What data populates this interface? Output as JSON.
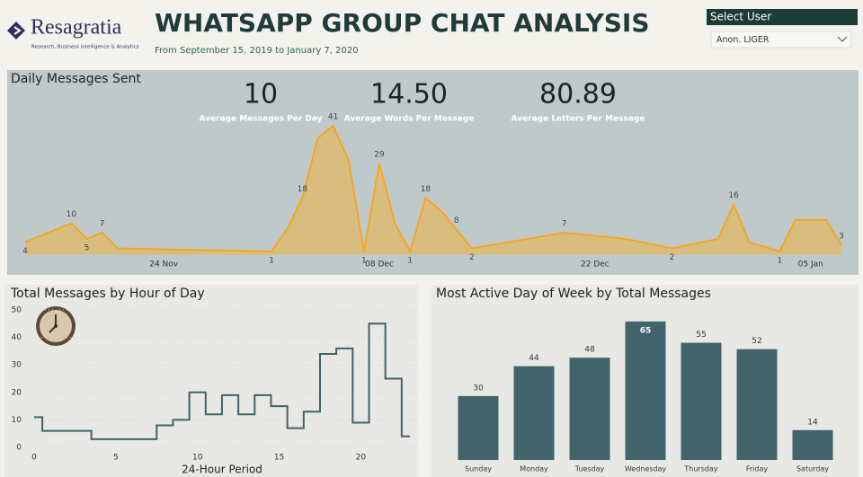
{
  "header": {
    "logo": "Resagratia",
    "logo_tagline": "Research, Business Intelligence & Analytics",
    "title": "WHATSAPP GROUP CHAT ANALYSIS",
    "subtitle": "From September 15, 2019 to January 7, 2020"
  },
  "filter": {
    "label": "Select User",
    "selected": "Anon. LIGER"
  },
  "kpis": [
    {
      "value": "10",
      "label": "Average Messages Per Day"
    },
    {
      "value": "14.50",
      "label": "Average Words Per Message"
    },
    {
      "value": "80.89",
      "label": "Average Letters Per Message"
    }
  ],
  "chart_data": [
    {
      "type": "area",
      "title": "Daily Messages Sent",
      "color": "#f5a623",
      "fill": "#d9bd7e",
      "x": [
        "2019-11-15",
        "2019-11-18",
        "2019-11-19",
        "2019-11-20",
        "2019-11-21",
        "2019-12-01",
        "2019-12-02",
        "2019-12-03",
        "2019-12-04",
        "2019-12-05",
        "2019-12-06",
        "2019-12-07",
        "2019-12-08",
        "2019-12-09",
        "2019-12-10",
        "2019-12-11",
        "2019-12-12",
        "2019-12-13",
        "2019-12-14",
        "2019-12-20",
        "2019-12-24",
        "2019-12-27",
        "2019-12-30",
        "2019-12-31",
        "2020-01-01",
        "2020-01-03",
        "2020-01-04",
        "2020-01-06",
        "2020-01-07"
      ],
      "values": [
        4,
        10,
        5,
        7,
        2,
        1,
        8,
        18,
        37,
        41,
        30,
        1,
        29,
        10,
        1,
        18,
        14,
        8,
        2,
        7,
        5,
        2,
        5,
        16,
        4,
        1,
        11,
        11,
        3
      ],
      "value_labels": [
        "4",
        "10",
        "5",
        "7",
        null,
        "1",
        null,
        "18",
        null,
        "41",
        null,
        "1",
        "29",
        null,
        "1",
        "18",
        null,
        "8",
        "2",
        "7",
        null,
        "2",
        null,
        "16",
        null,
        "1",
        null,
        null,
        "3"
      ],
      "xlim": [
        "2019-11-15",
        "2020-01-07"
      ],
      "xticks": [
        {
          "value": "2019-11-24",
          "label": "24 Nov"
        },
        {
          "value": "2019-12-08",
          "label": "08 Dec"
        },
        {
          "value": "2019-12-22",
          "label": "22 Dec"
        },
        {
          "value": "2020-01-05",
          "label": "05 Jan"
        }
      ],
      "ylim": [
        0,
        45
      ]
    },
    {
      "type": "line",
      "step": "mid",
      "title": "Total Messages by Hour of Day",
      "x_label": "24-Hour Period",
      "color": "#3f6468",
      "x": [
        0,
        1,
        2,
        3,
        4,
        5,
        6,
        7,
        8,
        9,
        10,
        11,
        12,
        13,
        14,
        15,
        16,
        17,
        18,
        19,
        20,
        21,
        22,
        23
      ],
      "values": [
        11,
        6,
        6,
        6,
        3,
        3,
        3,
        3,
        8,
        10,
        20,
        12,
        19,
        12,
        19,
        15,
        7,
        13,
        34,
        36,
        9,
        45,
        25,
        4
      ],
      "xlim": [
        0,
        23.5
      ],
      "xticks": [
        0,
        5,
        10,
        15,
        20
      ],
      "ylim": [
        0,
        50
      ],
      "yticks": [
        0,
        10,
        20,
        30,
        40,
        50
      ],
      "grid": true
    },
    {
      "type": "bar",
      "title": "Most Active Day of Week by Total Messages",
      "color": "#42646b",
      "categories": [
        "Sunday",
        "Monday",
        "Tuesday",
        "Wednesday",
        "Thursday",
        "Friday",
        "Saturday"
      ],
      "values": [
        30,
        44,
        48,
        65,
        55,
        52,
        14
      ],
      "ylim": [
        0,
        70
      ]
    }
  ]
}
